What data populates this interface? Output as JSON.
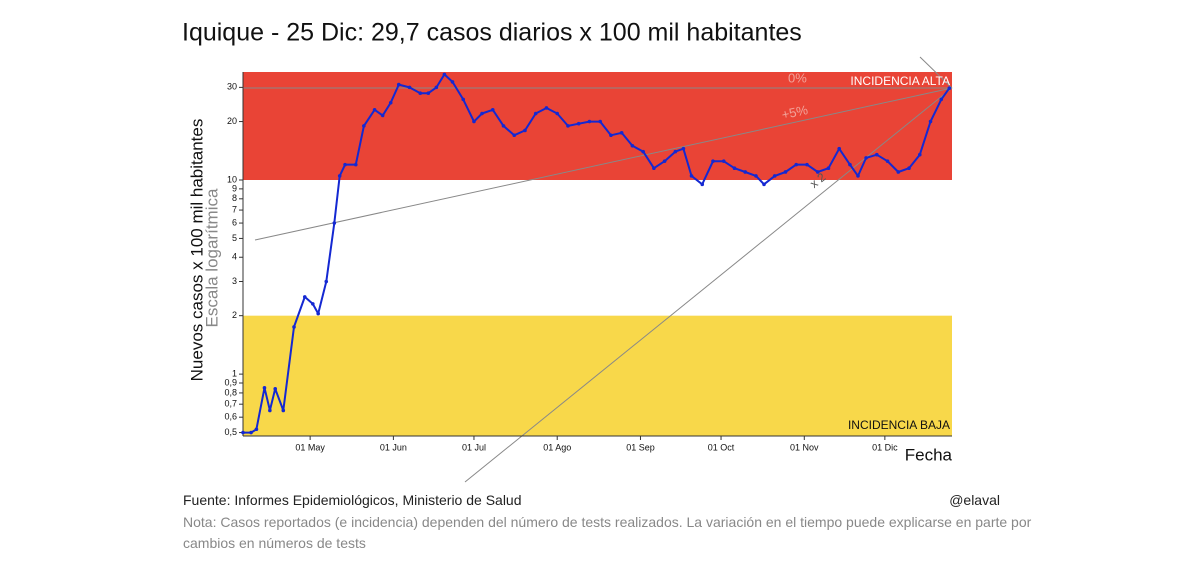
{
  "chart_data": {
    "type": "line",
    "title": "Iquique - 25 Dic: 29,7 casos diarios x 100 mil habitantes",
    "ylabel": "Nuevos casos x 100 mil habitantes",
    "ylabel2": "Escala logarítmica",
    "xlabel": "Fecha",
    "log_y": true,
    "color": "#1428d2",
    "x": [
      "04-06",
      "04-09",
      "04-11",
      "04-14",
      "04-16",
      "04-18",
      "04-21",
      "04-25",
      "04-29",
      "05-02",
      "05-04",
      "05-07",
      "05-10",
      "05-12",
      "05-14",
      "05-18",
      "05-21",
      "05-25",
      "05-28",
      "05-31",
      "06-03",
      "06-07",
      "06-11",
      "06-14",
      "06-17",
      "06-20",
      "06-23",
      "06-27",
      "07-01",
      "07-04",
      "07-08",
      "07-12",
      "07-16",
      "07-20",
      "07-24",
      "07-28",
      "08-01",
      "08-05",
      "08-09",
      "08-13",
      "08-17",
      "08-21",
      "08-25",
      "08-29",
      "09-02",
      "09-06",
      "09-10",
      "09-14",
      "09-17",
      "09-20",
      "09-24",
      "09-28",
      "10-02",
      "10-06",
      "10-10",
      "10-14",
      "10-17",
      "10-21",
      "10-25",
      "10-29",
      "11-02",
      "11-06",
      "11-10",
      "11-14",
      "11-18",
      "11-21",
      "11-24",
      "11-28",
      "12-02",
      "12-06",
      "12-10",
      "12-14",
      "12-18",
      "12-22",
      "12-25"
    ],
    "values": [
      0.5,
      0.5,
      0.52,
      0.85,
      0.65,
      0.84,
      0.65,
      1.75,
      2.5,
      2.3,
      2.05,
      3,
      6,
      10.5,
      12,
      12,
      19,
      23,
      21.5,
      25,
      31,
      30,
      28,
      28,
      30,
      35,
      32,
      26,
      20,
      22,
      23,
      19,
      17,
      18,
      22,
      23.5,
      22,
      19,
      19.5,
      20,
      20,
      17,
      17.5,
      15,
      14,
      11.5,
      12.5,
      14,
      14.5,
      10.5,
      9.5,
      12.5,
      12.5,
      11.5,
      11,
      10.5,
      9.5,
      10.5,
      11,
      12,
      12,
      11,
      11.5,
      14.5,
      12,
      10.5,
      13,
      13.5,
      12.5,
      11,
      11.5,
      13.5,
      20,
      26,
      29.7
    ],
    "xlim": [
      "04-06",
      "12-26"
    ],
    "xticks": [
      {
        "value": "05-01",
        "label": "01 May"
      },
      {
        "value": "06-01",
        "label": "01 Jun"
      },
      {
        "value": "07-01",
        "label": "01 Jul"
      },
      {
        "value": "08-01",
        "label": "01 Ago"
      },
      {
        "value": "09-01",
        "label": "01 Sep"
      },
      {
        "value": "10-01",
        "label": "01 Oct"
      },
      {
        "value": "11-01",
        "label": "01 Nov"
      },
      {
        "value": "12-01",
        "label": "01 Dic"
      }
    ],
    "ylim": [
      0.48,
      36
    ],
    "yticks": [
      {
        "value": 0.5,
        "label": "0,5"
      },
      {
        "value": 0.6,
        "label": "0,6"
      },
      {
        "value": 0.7,
        "label": "0,7"
      },
      {
        "value": 0.8,
        "label": "0,8"
      },
      {
        "value": 0.9,
        "label": "0,9"
      },
      1,
      2,
      3,
      4,
      5,
      6,
      7,
      8,
      9,
      10,
      20,
      30
    ],
    "bands": [
      {
        "from": 10,
        "to": 36,
        "color": "#e94436",
        "label": "INCIDENCIA ALTA"
      },
      {
        "from": 0.48,
        "to": 2,
        "color": "#f8d84a",
        "label": "INCIDENCIA BAJA"
      }
    ],
    "annotations": [
      "0%",
      "+5%",
      "x 2"
    ]
  },
  "footer": {
    "source": "Fuente: Informes Epidemiológicos, Ministerio de Salud",
    "handle": "@elaval",
    "note": "Nota: Casos reportados (e incidencia) dependen del número de tests realizados. La variación en el tiempo puede explicarse en parte por cambios en números de tests"
  }
}
